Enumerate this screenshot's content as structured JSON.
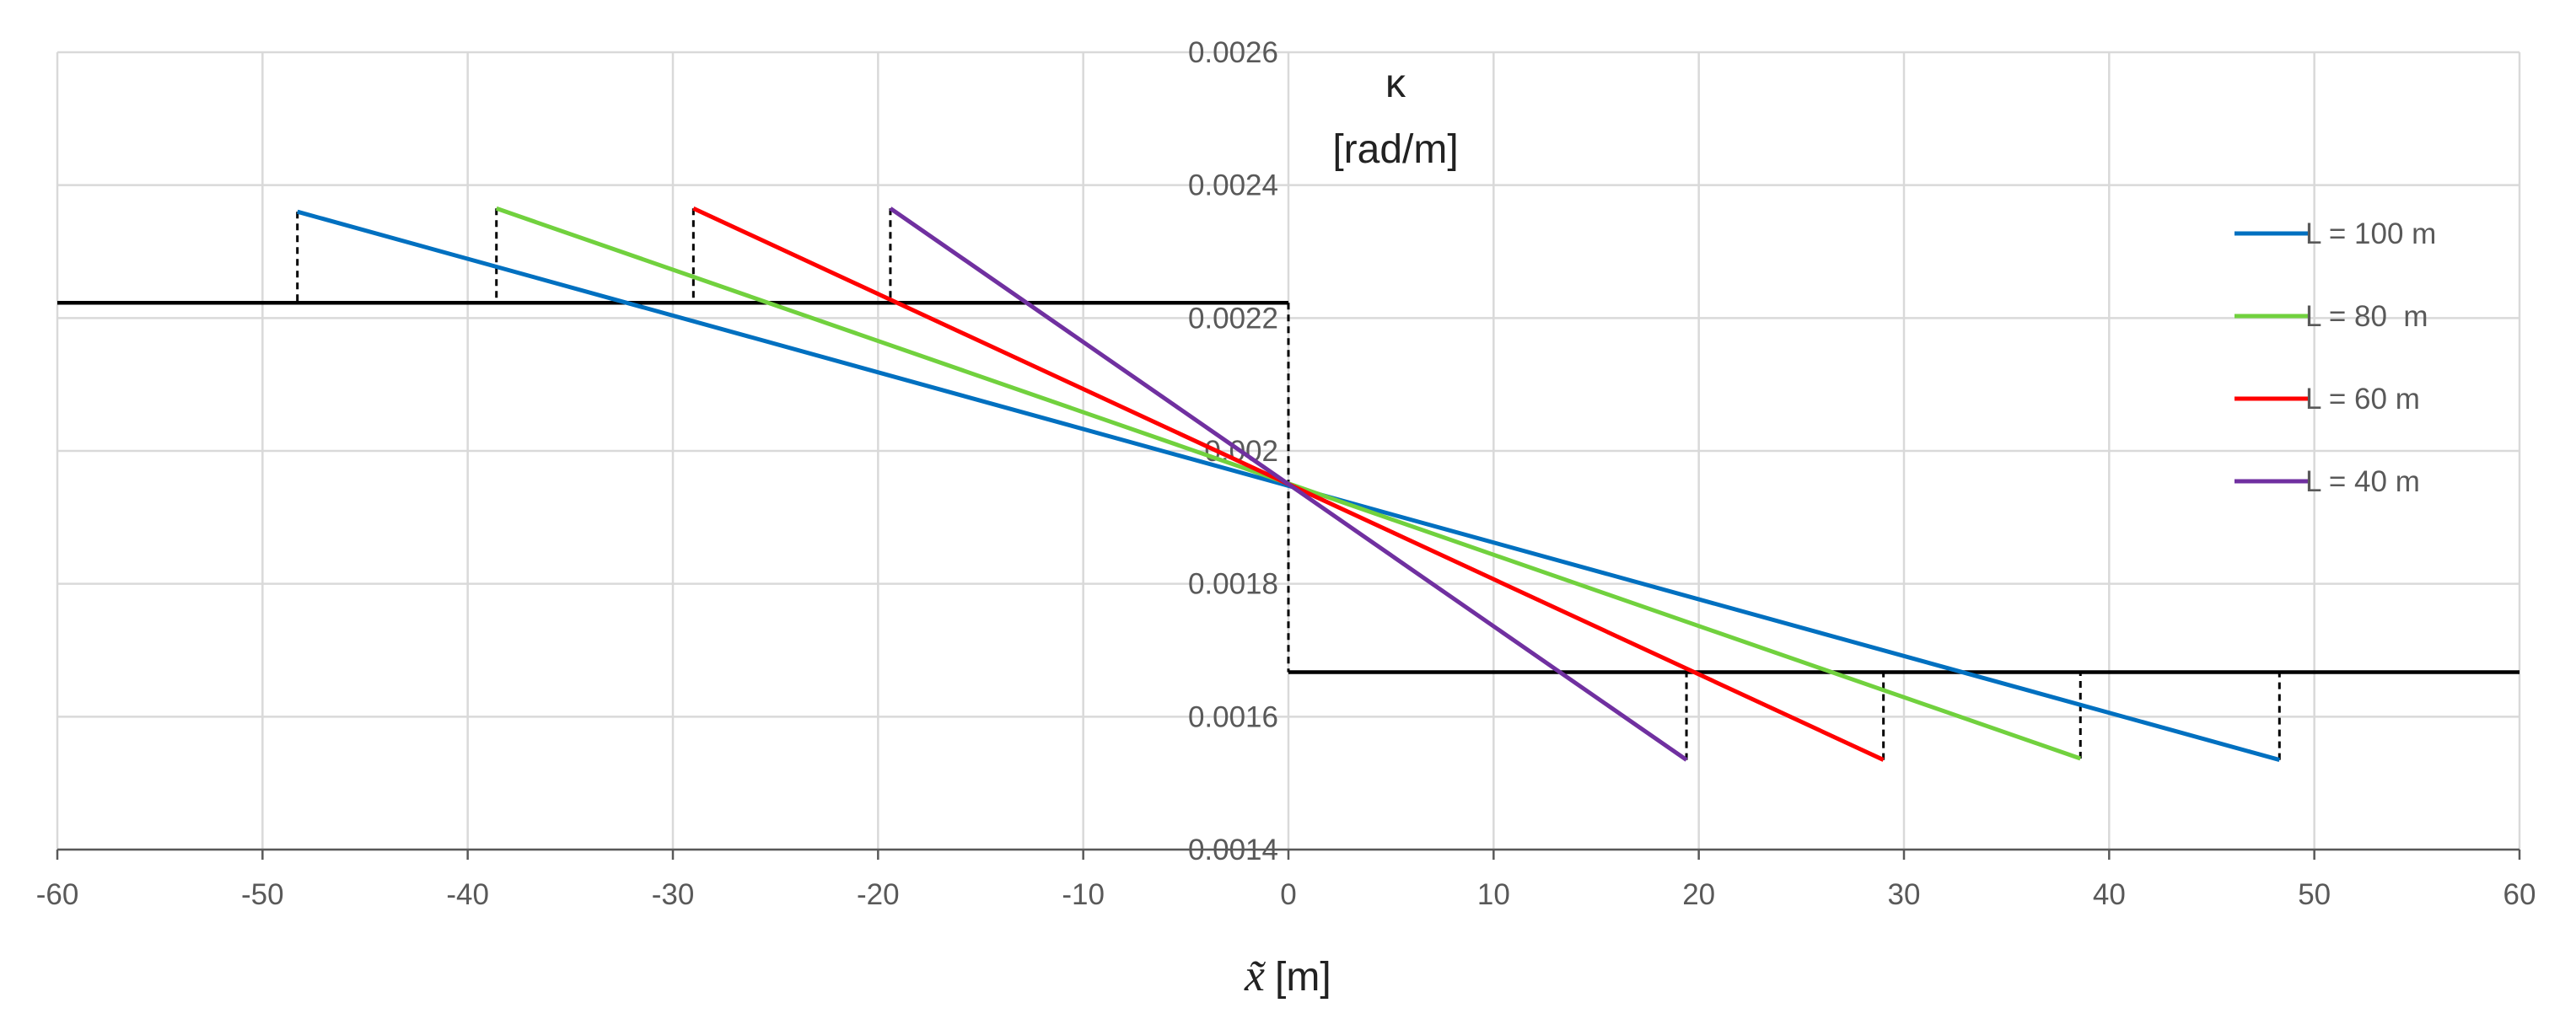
{
  "chart_data": {
    "type": "line",
    "title": "",
    "xlabel_symbol": "x̃",
    "xlabel_unit": "[m]",
    "ylabel_line1": "κ",
    "ylabel_line2": "[rad/m]",
    "xlim": [
      -60,
      60
    ],
    "ylim": [
      0.0014,
      0.0026
    ],
    "x_ticks": [
      -60,
      -50,
      -40,
      -30,
      -20,
      -10,
      0,
      10,
      20,
      30,
      40,
      50,
      60
    ],
    "x_tick_labels": [
      "-60",
      "-50",
      "-40",
      "-30",
      "-20",
      "-10",
      "0",
      "10",
      "20",
      "30",
      "40",
      "50",
      "60"
    ],
    "y_ticks": [
      0.0014,
      0.0016,
      0.0018,
      0.002,
      0.0022,
      0.0024,
      0.0026
    ],
    "y_tick_labels": [
      "0.0014",
      "0.0016",
      "0.0018",
      "0.002",
      "0.0022",
      "0.0024",
      "0.0026"
    ],
    "grid": true,
    "legend_position": "right",
    "step_function": {
      "left_x": [
        -60,
        0
      ],
      "left_y": 0.002223,
      "right_x": [
        0,
        60
      ],
      "right_y": 0.001667,
      "color": "#000000"
    },
    "series": [
      {
        "name": "L = 100 m",
        "color": "#0070c0",
        "x": [
          -48.3,
          48.3
        ],
        "y": [
          0.00236,
          0.001535
        ]
      },
      {
        "name": "L = 80  m",
        "color": "#71d13e",
        "x": [
          -38.6,
          38.6
        ],
        "y": [
          0.002365,
          0.001537
        ]
      },
      {
        "name": "L = 60 m",
        "color": "#ff0000",
        "x": [
          -29.0,
          29.0
        ],
        "y": [
          0.002365,
          0.001535
        ]
      },
      {
        "name": "L = 40 m",
        "color": "#7030a0",
        "x": [
          -19.4,
          19.4
        ],
        "y": [
          0.002365,
          0.001535
        ]
      }
    ]
  }
}
